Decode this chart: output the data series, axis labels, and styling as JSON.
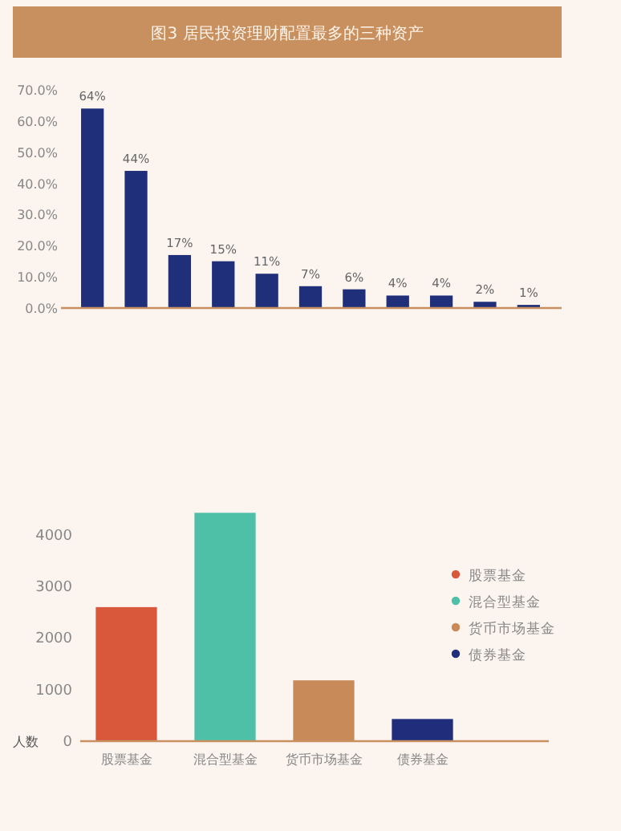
{
  "chart_data": [
    {
      "type": "bar",
      "title": "图3 居民投资理财配置最多的三种资产",
      "categories": [
        null,
        null,
        null,
        null,
        null,
        null,
        null,
        null,
        null,
        null,
        null
      ],
      "values": [
        64,
        44,
        17,
        15,
        11,
        7,
        6,
        4,
        4,
        2,
        1
      ],
      "value_labels": [
        "64%",
        "44%",
        "17%",
        "15%",
        "11%",
        "7%",
        "6%",
        "4%",
        "4%",
        "2%",
        "1%"
      ],
      "color": "#1f2f7a",
      "ylim": [
        0,
        70
      ],
      "yticks": [
        {
          "value": 0,
          "label": "0.0%"
        },
        {
          "value": 10,
          "label": "10.0%"
        },
        {
          "value": 20,
          "label": "20.0%"
        },
        {
          "value": 30,
          "label": "30.0%"
        },
        {
          "value": 40,
          "label": "40.0%"
        },
        {
          "value": 50,
          "label": "50.0%"
        },
        {
          "value": 60,
          "label": "60.0%"
        },
        {
          "value": 70,
          "label": "70.0%"
        }
      ]
    },
    {
      "type": "bar",
      "ylabel": "人数",
      "categories": [
        "股票基金",
        "混合型基金",
        "货币市场基金",
        "债券基金"
      ],
      "stacked": true,
      "series": [
        {
          "name": "股票基金",
          "color": "#d9573b",
          "values": [
            2600,
            null,
            null,
            null
          ]
        },
        {
          "name": "混合型基金",
          "color": "#4fc0a8",
          "values": [
            null,
            4430,
            null,
            null
          ]
        },
        {
          "name": "货币市场基金",
          "color": "#c98a5a",
          "values": [
            null,
            null,
            1180,
            null
          ]
        },
        {
          "name": "债券基金",
          "color": "#1f2d7b",
          "values": [
            null,
            null,
            null,
            430
          ]
        }
      ],
      "ylim": [
        0,
        4500
      ],
      "yticks": [
        0,
        1000,
        2000,
        3000,
        4000
      ],
      "legend": "right"
    }
  ]
}
